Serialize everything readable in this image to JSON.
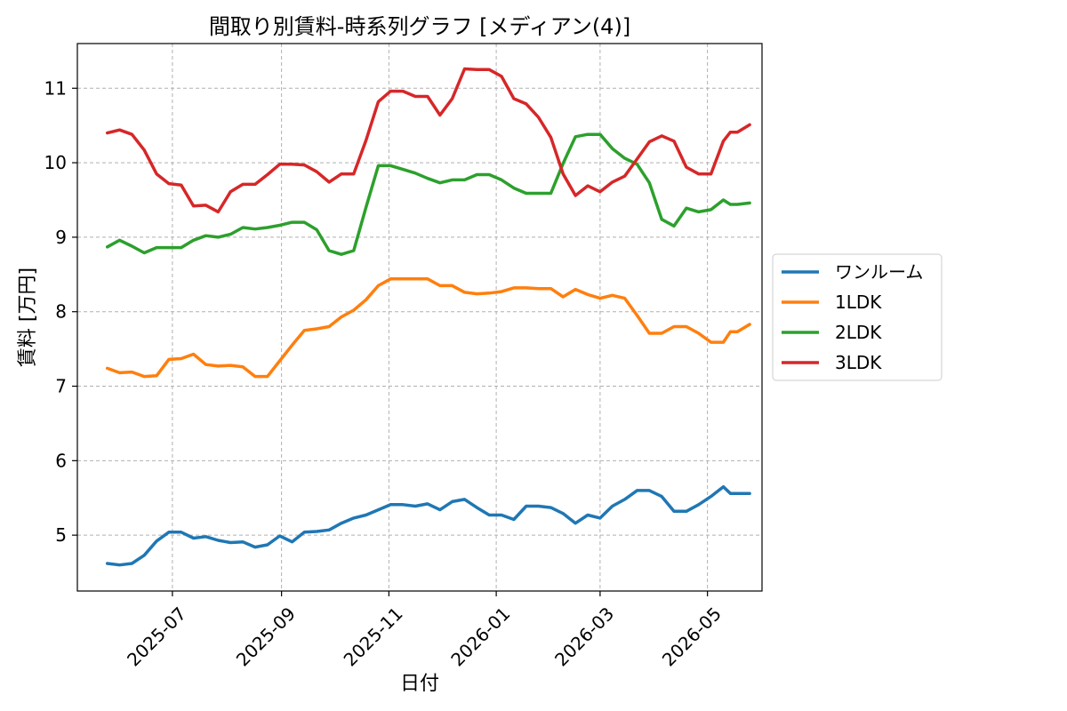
{
  "chart_data": {
    "type": "line",
    "title": "間取り別賃料-時系列グラフ [メディアン(4)]",
    "xlabel": "日付",
    "ylabel": "賃料 [万円]",
    "ylim": [
      4.25,
      11.6
    ],
    "xlim": [
      "2025-05-08",
      "2026-06-01"
    ],
    "yticks": [
      5,
      6,
      7,
      8,
      9,
      10,
      11
    ],
    "xticks": [
      "2025-07",
      "2025-09",
      "2025-11",
      "2026-01",
      "2026-03",
      "2026-05"
    ],
    "grid": true,
    "legend_position": "right-outside",
    "x": [
      "2025-05-25",
      "2025-06-01",
      "2025-06-08",
      "2025-06-15",
      "2025-06-22",
      "2025-06-29",
      "2025-07-06",
      "2025-07-13",
      "2025-07-20",
      "2025-07-27",
      "2025-08-03",
      "2025-08-10",
      "2025-08-17",
      "2025-08-24",
      "2025-08-31",
      "2025-09-07",
      "2025-09-14",
      "2025-09-21",
      "2025-09-28",
      "2025-10-05",
      "2025-10-12",
      "2025-10-19",
      "2025-10-26",
      "2025-11-02",
      "2025-11-09",
      "2025-11-16",
      "2025-11-23",
      "2025-11-30",
      "2025-12-07",
      "2025-12-14",
      "2025-12-21",
      "2025-12-28",
      "2026-01-04",
      "2026-01-11",
      "2026-01-18",
      "2026-01-25",
      "2026-02-01",
      "2026-02-08",
      "2026-02-15",
      "2026-02-22",
      "2026-03-01",
      "2026-03-08",
      "2026-03-15",
      "2026-03-22",
      "2026-03-29",
      "2026-04-05",
      "2026-04-12",
      "2026-04-19",
      "2026-04-26",
      "2026-05-03",
      "2026-05-10",
      "2026-05-14",
      "2026-05-18",
      "2026-05-25"
    ],
    "series": [
      {
        "name": "ワンルーム",
        "color": "#1f77b4",
        "values": [
          4.62,
          4.6,
          4.62,
          4.73,
          4.92,
          5.04,
          5.04,
          4.96,
          4.98,
          4.93,
          4.9,
          4.91,
          4.84,
          4.87,
          4.99,
          4.91,
          5.04,
          5.05,
          5.07,
          5.16,
          5.23,
          5.27,
          5.34,
          5.41,
          5.41,
          5.39,
          5.42,
          5.34,
          5.45,
          5.48,
          5.37,
          5.27,
          5.27,
          5.21,
          5.39,
          5.39,
          5.37,
          5.29,
          5.16,
          5.27,
          5.23,
          5.39,
          5.48,
          5.6,
          5.6,
          5.52,
          5.32,
          5.32,
          5.41,
          5.52,
          5.65,
          5.56,
          5.56,
          5.56
        ]
      },
      {
        "name": "1LDK",
        "color": "#ff7f0e",
        "values": [
          7.24,
          7.18,
          7.19,
          7.13,
          7.14,
          7.36,
          7.37,
          7.43,
          7.29,
          7.27,
          7.28,
          7.26,
          7.13,
          7.13,
          7.34,
          7.55,
          7.75,
          7.77,
          7.8,
          7.93,
          8.02,
          8.16,
          8.35,
          8.44,
          8.44,
          8.44,
          8.44,
          8.35,
          8.35,
          8.26,
          8.24,
          8.25,
          8.27,
          8.32,
          8.32,
          8.31,
          8.31,
          8.2,
          8.3,
          8.23,
          8.18,
          8.22,
          8.18,
          7.95,
          7.71,
          7.71,
          7.8,
          7.8,
          7.71,
          7.59,
          7.59,
          7.73,
          7.73,
          7.83
        ]
      },
      {
        "name": "2LDK",
        "color": "#2ca02c",
        "values": [
          8.87,
          8.96,
          8.88,
          8.79,
          8.86,
          8.86,
          8.86,
          8.96,
          9.02,
          9.0,
          9.04,
          9.13,
          9.11,
          9.13,
          9.16,
          9.2,
          9.2,
          9.1,
          8.82,
          8.77,
          8.82,
          9.4,
          9.96,
          9.96,
          9.91,
          9.86,
          9.79,
          9.73,
          9.77,
          9.77,
          9.84,
          9.84,
          9.77,
          9.66,
          9.59,
          9.59,
          9.59,
          9.99,
          10.35,
          10.38,
          10.38,
          10.19,
          10.06,
          9.98,
          9.73,
          9.24,
          9.15,
          9.39,
          9.34,
          9.37,
          9.5,
          9.44,
          9.44,
          9.46
        ]
      },
      {
        "name": "3LDK",
        "color": "#d62728",
        "values": [
          10.4,
          10.44,
          10.38,
          10.17,
          9.85,
          9.72,
          9.7,
          9.42,
          9.43,
          9.34,
          9.61,
          9.71,
          9.71,
          9.84,
          9.98,
          9.98,
          9.97,
          9.88,
          9.74,
          9.85,
          9.85,
          10.3,
          10.82,
          10.96,
          10.96,
          10.89,
          10.89,
          10.64,
          10.86,
          11.26,
          11.25,
          11.25,
          11.16,
          10.86,
          10.79,
          10.61,
          10.34,
          9.85,
          9.56,
          9.69,
          9.61,
          9.74,
          9.82,
          10.05,
          10.28,
          10.36,
          10.29,
          9.94,
          9.85,
          9.85,
          10.29,
          10.41,
          10.41,
          10.51
        ]
      }
    ]
  }
}
